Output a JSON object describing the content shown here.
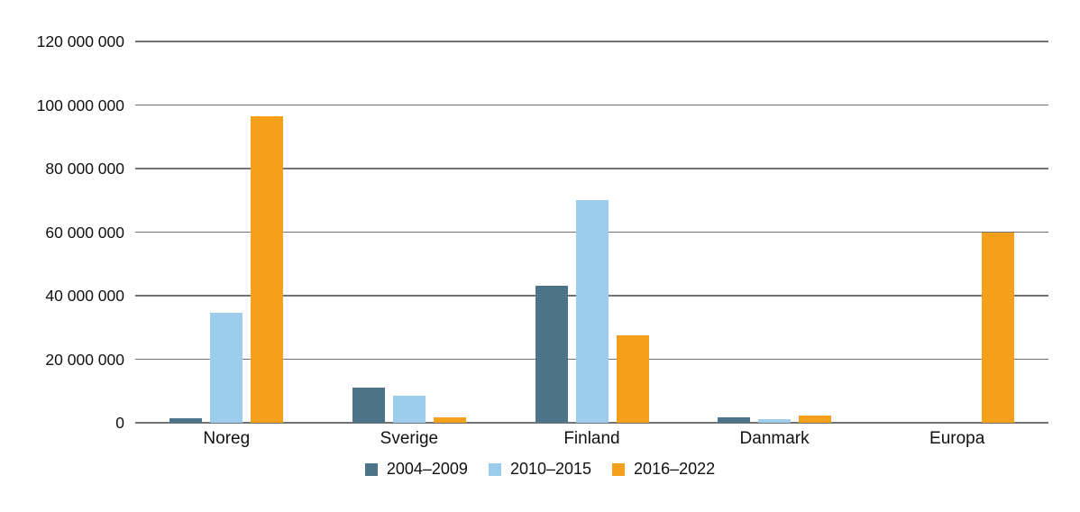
{
  "chart_data": {
    "type": "bar",
    "title": "",
    "xlabel": "",
    "ylabel": "",
    "categories": [
      "Noreg",
      "Sverige",
      "Finland",
      "Danmark",
      "Europa"
    ],
    "series": [
      {
        "name": "2004–2009",
        "color": "#4d7389",
        "values": [
          1500000,
          11000000,
          43000000,
          1700000,
          0
        ]
      },
      {
        "name": "2010–2015",
        "color": "#9dcdec",
        "values": [
          34500000,
          8600000,
          70000000,
          1100000,
          0
        ]
      },
      {
        "name": "2016–2022",
        "color": "#f5a01a",
        "values": [
          96500000,
          1800000,
          27500000,
          2300000,
          60000000
        ]
      }
    ],
    "ylim": [
      0,
      120000000
    ],
    "ytick_interval": 20000000,
    "ytick_labels": [
      "0",
      "20 000 000",
      "40 000 000",
      "60 000 000",
      "80 000 000",
      "100 000 000",
      "120 000 000"
    ],
    "grid": true,
    "legend_position": "bottom",
    "colors": {
      "gridline": "#737373",
      "text": "#111111",
      "background": "#ffffff"
    }
  }
}
